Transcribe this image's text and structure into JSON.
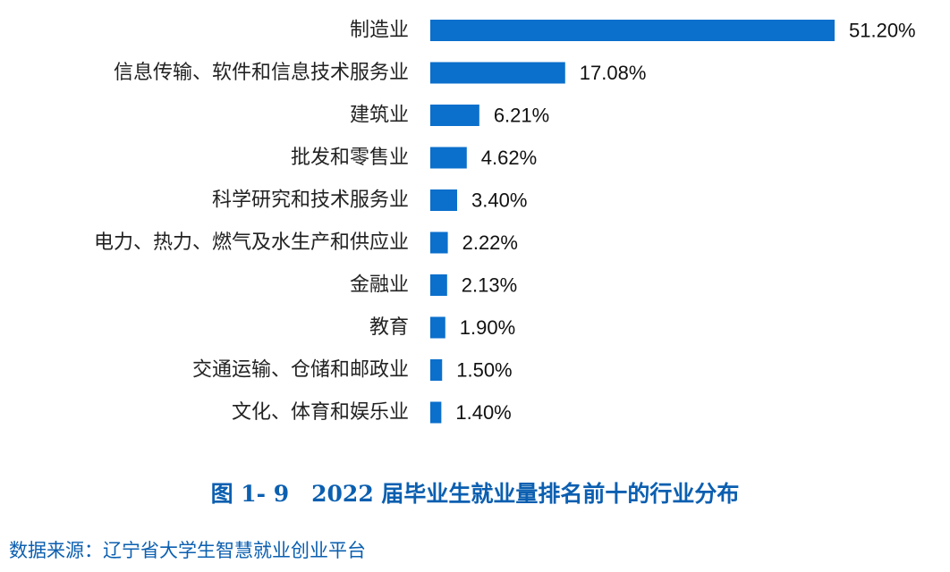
{
  "chart_data": {
    "type": "bar",
    "orientation": "horizontal",
    "categories": [
      "制造业",
      "信息传输、软件和信息技术服务业",
      "建筑业",
      "批发和零售业",
      "科学研究和技术服务业",
      "电力、热力、燃气及水生产和供应业",
      "金融业",
      "教育",
      "交通运输、仓储和邮政业",
      "文化、体育和娱乐业"
    ],
    "values": [
      51.2,
      17.08,
      6.21,
      4.62,
      3.4,
      2.22,
      2.13,
      1.9,
      1.5,
      1.4
    ],
    "value_labels": [
      "51.20%",
      "17.08%",
      "6.21%",
      "4.62%",
      "3.40%",
      "2.22%",
      "2.13%",
      "1.90%",
      "1.50%",
      "1.40%"
    ],
    "xlim": [
      0,
      51.2
    ],
    "grid": false,
    "legend": "none"
  },
  "caption": "图 1- 9　2022 届毕业生就业量排名前十的行业分布",
  "source": "数据来源：辽宁省大学生智慧就业创业平台",
  "colors": {
    "bar": "#0B6FCC",
    "caption": "#0B5FB0",
    "source": "#0B5FB0"
  }
}
